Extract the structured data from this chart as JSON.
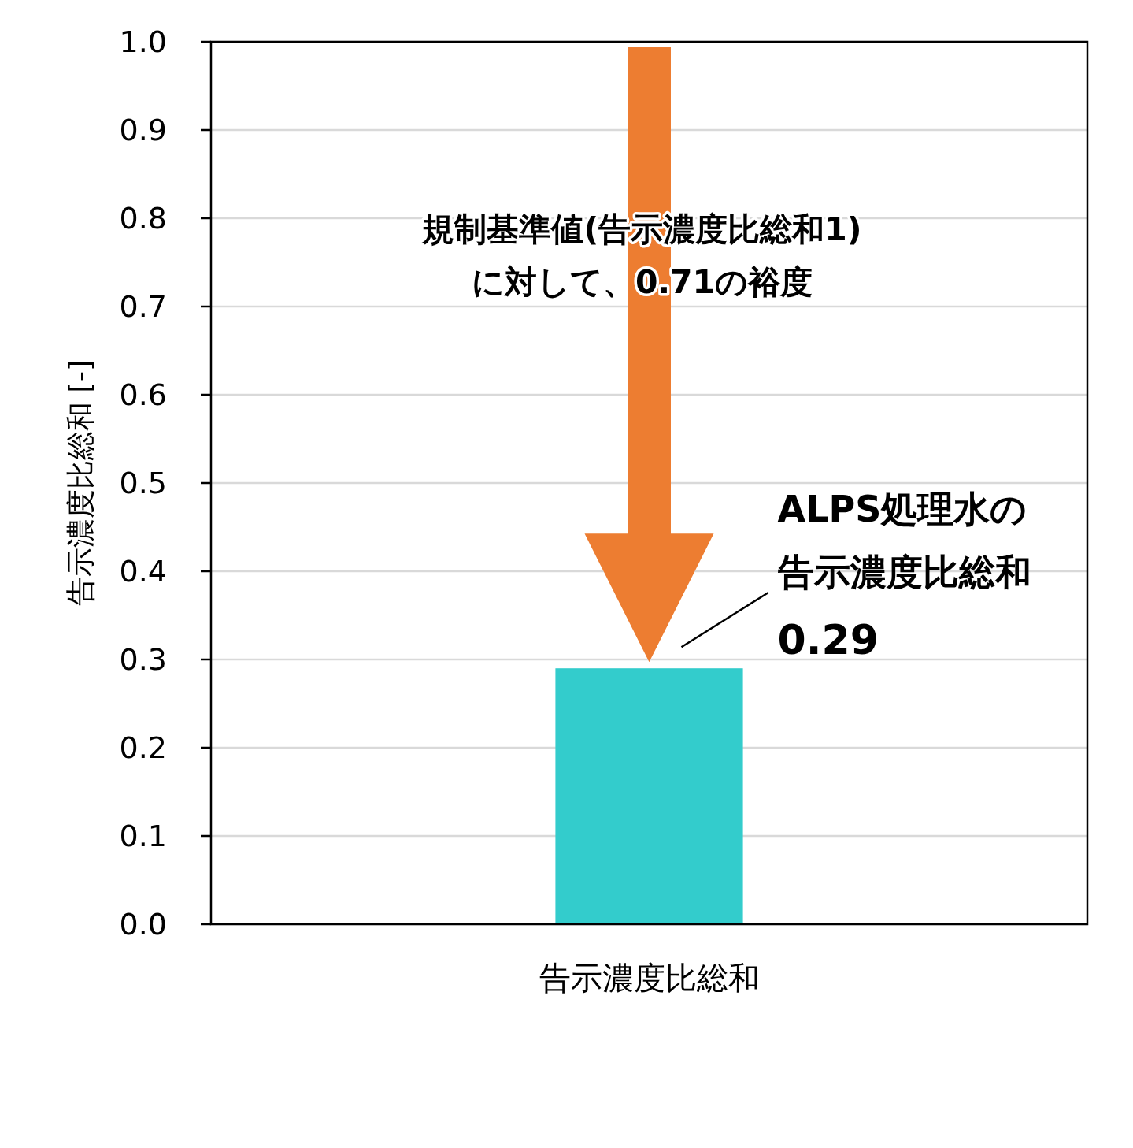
{
  "chart_data": {
    "type": "bar",
    "categories": [
      "告示濃度比総和"
    ],
    "values": [
      0.29
    ],
    "color": "#33cccc",
    "ylabel": "告示濃度比総和 [-]",
    "ylim": [
      0,
      1
    ],
    "yticks": [
      {
        "value": 0,
        "label": "0.0"
      },
      0.1,
      0.2,
      0.3,
      0.4,
      0.5,
      0.6,
      0.7,
      0.8,
      0.9,
      {
        "value": 1,
        "label": "1.0"
      }
    ],
    "grid": "y",
    "annotations": [
      "規制基準値(告示濃度比総和1)に対して、0.71の裕度",
      "ALPS処理水の告示濃度比総和",
      "0.29"
    ]
  }
}
